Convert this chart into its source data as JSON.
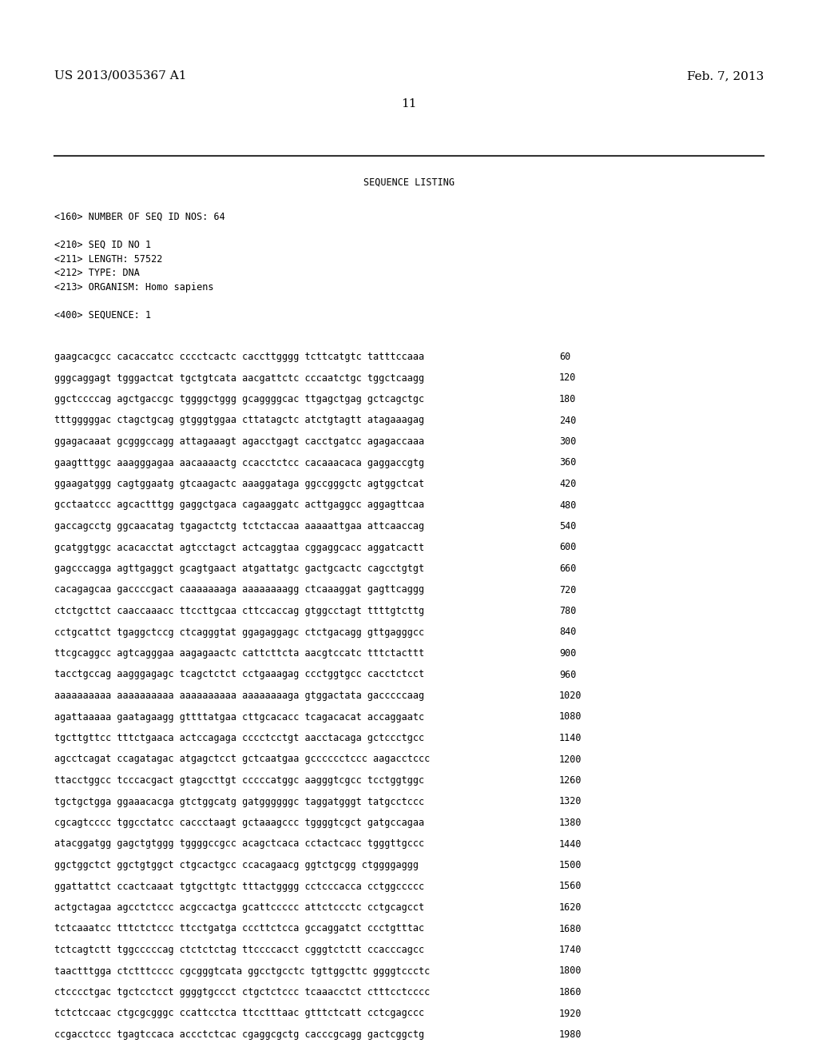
{
  "patent_number": "US 2013/0035367 A1",
  "date": "Feb. 7, 2013",
  "page_number": "11",
  "background_color": "#ffffff",
  "text_color": "#000000",
  "sequence_listing_title": "SEQUENCE LISTING",
  "metadata": [
    "<160> NUMBER OF SEQ ID NOS: 64",
    "",
    "<210> SEQ ID NO 1",
    "<211> LENGTH: 57522",
    "<212> TYPE: DNA",
    "<213> ORGANISM: Homo sapiens",
    "",
    "<400> SEQUENCE: 1"
  ],
  "sequence_lines": [
    [
      "gaagcacgcc cacaccatcc cccctcactc caccttgggg tcttcatgtc tatttccaaa",
      "60"
    ],
    [
      "gggcaggagt tgggactcat tgctgtcata aacgattctc cccaatctgc tggctcaagg",
      "120"
    ],
    [
      "ggctccccag agctgaccgc tggggctggg gcaggggcac ttgagctgag gctcagctgc",
      "180"
    ],
    [
      "tttgggggac ctagctgcag gtgggtggaa cttatagctc atctgtagtt atagaaagag",
      "240"
    ],
    [
      "ggagacaaat gcgggccagg attagaaagt agacctgagt cacctgatcc agagaccaaa",
      "300"
    ],
    [
      "gaagtttggc aaagggagaa aacaaaactg ccacctctcc cacaaacaca gaggaccgtg",
      "360"
    ],
    [
      "ggaagatggg cagtggaatg gtcaagactc aaaggataga ggccgggctc agtggctcat",
      "420"
    ],
    [
      "gcctaatccc agcactttgg gaggctgaca cagaaggatc acttgaggcc aggagttcaa",
      "480"
    ],
    [
      "gaccagcctg ggcaacatag tgagactctg tctctaccaa aaaaattgaa attcaaccag",
      "540"
    ],
    [
      "gcatggtggc acacacctat agtcctagct actcaggtaa cggaggcacc aggatcactt",
      "600"
    ],
    [
      "gagcccagga agttgaggct gcagtgaact atgattatgc gactgcactc cagcctgtgt",
      "660"
    ],
    [
      "cacagagcaa gaccccgact caaaaaaaga aaaaaaaagg ctcaaaggat gagttcaggg",
      "720"
    ],
    [
      "ctctgcttct caaccaaacc ttccttgcaa cttccaccag gtggcctagt ttttgtcttg",
      "780"
    ],
    [
      "cctgcattct tgaggctccg ctcagggtat ggagaggagc ctctgacagg gttgagggcc",
      "840"
    ],
    [
      "ttcgcaggcc agtcagggaa aagagaactc cattcttcta aacgtccatc tttctacttt",
      "900"
    ],
    [
      "tacctgccag aagggagagc tcagctctct cctgaaagag ccctggtgcc cacctctcct",
      "960"
    ],
    [
      "aaaaaaaaaa aaaaaaaaaa aaaaaaaaaa aaaaaaaaga gtggactata gacccccaag",
      "1020"
    ],
    [
      "agattaaaaa gaatagaagg gttttatgaa cttgcacacc tcagacacat accaggaatc",
      "1080"
    ],
    [
      "tgcttgttcc tttctgaaca actccagaga cccctcctgt aacctacaga gctccctgcc",
      "1140"
    ],
    [
      "agcctcagat ccagatagac atgagctcct gctcaatgaa gcccccctccc aagacctccc",
      "1200"
    ],
    [
      "ttacctggcc tcccacgact gtagccttgt cccccatggc aagggtcgcc tcctggtggc",
      "1260"
    ],
    [
      "tgctgctgga ggaaacacga gtctggcatg gatggggggc taggatgggt tatgcctccc",
      "1320"
    ],
    [
      "cgcagtcccc tggcctatcc caccctaagt gctaaagccc tggggtcgct gatgccagaa",
      "1380"
    ],
    [
      "atacggatgg gagctgtggg tggggccgcc acagctcaca cctactcacc tgggttgccc",
      "1440"
    ],
    [
      "ggctggctct ggctgtggct ctgcactgcc ccacagaacg ggtctgcgg ctggggaggg",
      "1500"
    ],
    [
      "ggattattct ccactcaaat tgtgcttgtc tttactgggg cctcccacca cctggccccc",
      "1560"
    ],
    [
      "actgctagaa agcctctccc acgccactga gcattccccc attctccctc cctgcagcct",
      "1620"
    ],
    [
      "tctcaaatcc tttctctccc ttcctgatga cccttctcca gccaggatct ccctgtttac",
      "1680"
    ],
    [
      "tctcagtctt tggcccccag ctctctctag ttccccacct cgggtctctt ccacccagcc",
      "1740"
    ],
    [
      "taactttgga ctctttcccc cgcgggtcata ggcctgcctc tgttggcttc ggggtccctc",
      "1800"
    ],
    [
      "ctcccctgac tgctcctcct ggggtgccct ctgctctccc tcaaacctct ctttcctcccc",
      "1860"
    ],
    [
      "tctctccaac ctgcgcgggc ccattcctca ttcctttaac gtttctcatt cctcgagccc",
      "1920"
    ],
    [
      "ccgacctccc tgagtccaca accctctcac cgaggcgctg cacccgcagg gactcggctg",
      "1980"
    ]
  ]
}
